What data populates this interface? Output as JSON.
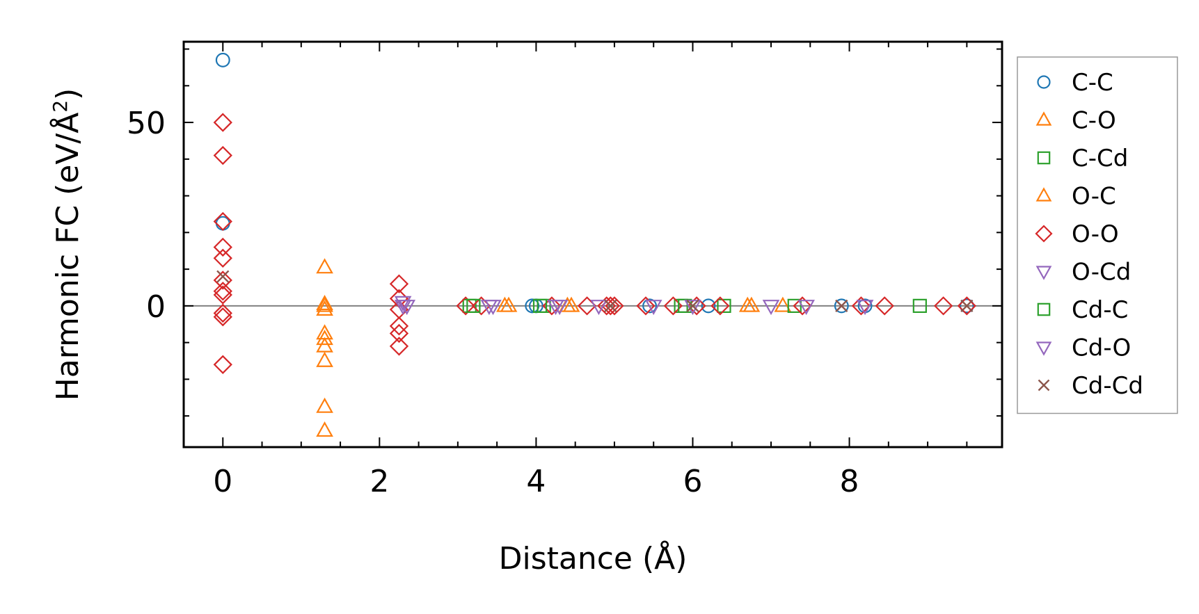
{
  "chart_data": {
    "type": "scatter",
    "title": "",
    "xlabel": "Distance (Å)",
    "ylabel": "Harmonic FC (eV/Å",
    "ylabel_superscript": "2",
    "ylabel_suffix": ")",
    "xlim": [
      -0.5,
      9.95
    ],
    "ylim": [
      -38.5,
      72
    ],
    "xticks": [
      0,
      2,
      4,
      6,
      8
    ],
    "xtick_labels": [
      "0",
      "2",
      "4",
      "6",
      "8"
    ],
    "yticks": [
      0,
      50
    ],
    "ytick_labels": [
      "0",
      "50"
    ],
    "zero_line": true,
    "legend_position": "right-outside-top",
    "series": [
      {
        "name": "C-C",
        "marker": "circle",
        "color": "#1f77b4",
        "points": [
          [
            0,
            67
          ],
          [
            0,
            22.5
          ],
          [
            3.95,
            0
          ],
          [
            4.0,
            0
          ],
          [
            5.45,
            0
          ],
          [
            6.2,
            0
          ],
          [
            7.9,
            0
          ],
          [
            8.2,
            0
          ],
          [
            9.5,
            0
          ]
        ]
      },
      {
        "name": "C-O",
        "marker": "triangle-up",
        "color": "#ff7f0e",
        "points": [
          [
            1.3,
            10.5
          ],
          [
            1.3,
            0.5
          ],
          [
            1.3,
            -1
          ],
          [
            1.3,
            -7.5
          ],
          [
            1.3,
            -9
          ],
          [
            1.3,
            -11
          ],
          [
            1.3,
            -15
          ],
          [
            1.3,
            -27.5
          ],
          [
            1.3,
            -34
          ],
          [
            3.65,
            0
          ],
          [
            4.45,
            0
          ],
          [
            6.75,
            0
          ],
          [
            7.15,
            0
          ]
        ]
      },
      {
        "name": "C-Cd",
        "marker": "square",
        "color": "#2ca02c",
        "points": [
          [
            3.15,
            0
          ],
          [
            4.1,
            0
          ],
          [
            5.85,
            0
          ],
          [
            6.4,
            0
          ],
          [
            7.3,
            0
          ],
          [
            8.9,
            0
          ]
        ]
      },
      {
        "name": "O-C",
        "marker": "triangle-up",
        "color": "#ff7f0e",
        "points": [
          [
            1.3,
            0
          ],
          [
            3.6,
            0
          ],
          [
            4.4,
            0
          ],
          [
            6.7,
            0
          ]
        ]
      },
      {
        "name": "O-O",
        "marker": "diamond",
        "color": "#d62728",
        "points": [
          [
            0,
            50
          ],
          [
            0,
            41
          ],
          [
            0,
            23
          ],
          [
            0,
            16
          ],
          [
            0,
            13
          ],
          [
            0,
            7
          ],
          [
            0,
            4
          ],
          [
            0,
            3
          ],
          [
            0,
            -2
          ],
          [
            0,
            -3
          ],
          [
            0,
            -16
          ],
          [
            2.25,
            6
          ],
          [
            2.25,
            2
          ],
          [
            2.25,
            -1
          ],
          [
            2.25,
            -5.5
          ],
          [
            2.25,
            -7.5
          ],
          [
            2.25,
            -11
          ],
          [
            3.1,
            0
          ],
          [
            3.3,
            0
          ],
          [
            4.2,
            0
          ],
          [
            4.65,
            0
          ],
          [
            4.9,
            0
          ],
          [
            4.95,
            0
          ],
          [
            5.0,
            0
          ],
          [
            5.4,
            0
          ],
          [
            5.75,
            0
          ],
          [
            6.05,
            0
          ],
          [
            6.35,
            0
          ],
          [
            7.4,
            0
          ],
          [
            8.15,
            0
          ],
          [
            8.45,
            0
          ],
          [
            9.2,
            0
          ],
          [
            9.5,
            0
          ]
        ]
      },
      {
        "name": "O-Cd",
        "marker": "triangle-down",
        "color": "#9467bd",
        "points": [
          [
            2.3,
            1
          ],
          [
            2.3,
            0
          ],
          [
            3.45,
            0
          ],
          [
            4.3,
            0
          ],
          [
            5.5,
            0
          ],
          [
            7.0,
            0
          ],
          [
            8.2,
            0
          ]
        ]
      },
      {
        "name": "Cd-C",
        "marker": "square",
        "color": "#2ca02c",
        "points": [
          [
            3.2,
            0
          ],
          [
            4.05,
            0
          ],
          [
            5.9,
            0
          ]
        ]
      },
      {
        "name": "Cd-O",
        "marker": "triangle-down",
        "color": "#9467bd",
        "points": [
          [
            2.35,
            0
          ],
          [
            3.4,
            0
          ],
          [
            4.25,
            0
          ],
          [
            4.8,
            0
          ],
          [
            6.0,
            0
          ],
          [
            7.45,
            0
          ]
        ]
      },
      {
        "name": "Cd-Cd",
        "marker": "x",
        "color": "#8c564b",
        "points": [
          [
            0,
            8
          ],
          [
            4.95,
            0
          ],
          [
            6.0,
            0
          ],
          [
            7.9,
            0
          ],
          [
            9.5,
            0
          ]
        ]
      }
    ]
  }
}
